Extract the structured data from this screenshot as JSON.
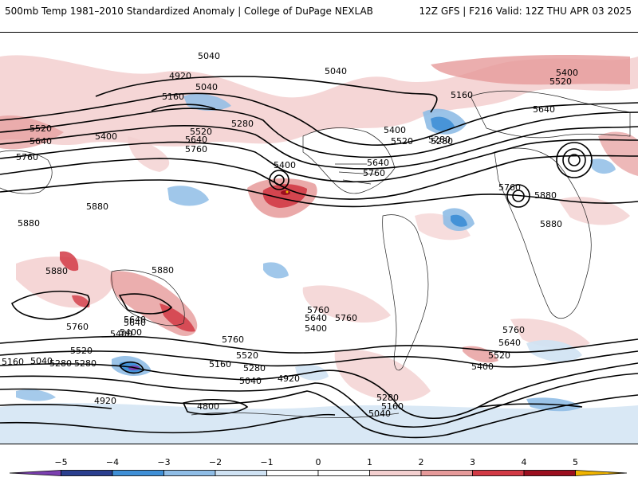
{
  "header": {
    "title_left": "500mb Temp 1981–2010 Standardized Anomaly | College of DuPage NEXLAB",
    "title_right": "12Z GFS | F216 Valid: 12Z THU APR 03 2025"
  },
  "colorbar": {
    "ticks": [
      "−5",
      "−4",
      "−3",
      "−2",
      "−1",
      "0",
      "1",
      "2",
      "3",
      "4",
      "5"
    ],
    "colors": [
      "#7b3fb0",
      "#2b3f8f",
      "#3f8fd6",
      "#8fbde6",
      "#cfe2f3",
      "#ffffff",
      "#ffffff",
      "#f3cfcf",
      "#e69a9a",
      "#d23a45",
      "#9b0f1f",
      "#f0b400"
    ]
  },
  "contour_labels": [
    "5040",
    "4920",
    "5040",
    "5160",
    "5040",
    "5400",
    "5520",
    "5160",
    "5280",
    "5640",
    "5520",
    "5400",
    "5640",
    "5280",
    "5520",
    "5760",
    "5640",
    "5400",
    "5760",
    "5400",
    "5640",
    "5520",
    "5280",
    "5760",
    "5880",
    "5880",
    "5760",
    "5880",
    "5880",
    "5880",
    "5880",
    "5640",
    "5400",
    "5760",
    "5640",
    "5400",
    "5760",
    "5640",
    "5520",
    "5760",
    "5400",
    "5280",
    "5160",
    "5040",
    "5520",
    "5280",
    "5160",
    "5040",
    "5760",
    "5280",
    "5520",
    "5400",
    "5640",
    "5760",
    "4920",
    "4920",
    "4800",
    "5280",
    "5160",
    "5040"
  ]
}
